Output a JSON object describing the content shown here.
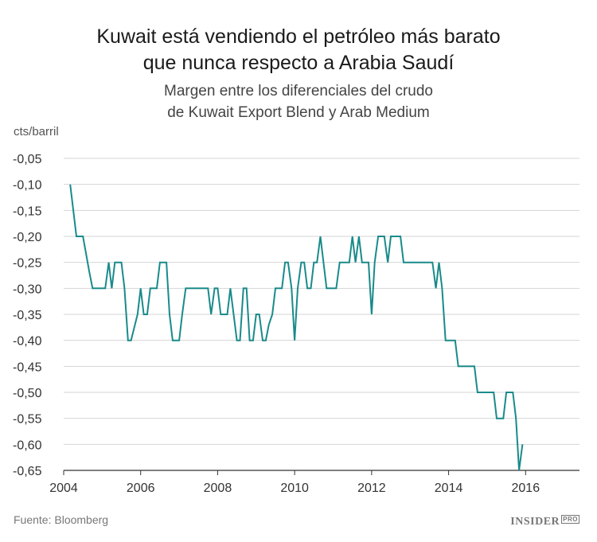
{
  "chart_data": {
    "type": "line",
    "title_lines": [
      "Kuwait está vendiendo el petróleo más barato",
      "que nunca respecto a Arabia Saudí"
    ],
    "subtitle_lines": [
      "Margen entre los diferenciales del crudo",
      "de Kuwait Export Blend y Arab Medium"
    ],
    "ylabel": "cts/barril",
    "xlim": [
      2004,
      2017.4
    ],
    "ylim": [
      -0.65,
      -0.05
    ],
    "y_ticks": [
      -0.05,
      -0.1,
      -0.15,
      -0.2,
      -0.25,
      -0.3,
      -0.35,
      -0.4,
      -0.45,
      -0.5,
      -0.55,
      -0.6,
      -0.65
    ],
    "y_tick_labels": [
      "-0,05",
      "-0,10",
      "-0,15",
      "-0,20",
      "-0,25",
      "-0,30",
      "-0,35",
      "-0,40",
      "-0,45",
      "-0,50",
      "-0,55",
      "-0,60",
      "-0,65"
    ],
    "x_ticks": [
      2004,
      2006,
      2008,
      2010,
      2012,
      2014,
      2016
    ],
    "x_tick_labels": [
      "2004",
      "2006",
      "2008",
      "2010",
      "2012",
      "2014",
      "2016"
    ],
    "line_color": "#1a8a8a",
    "series": [
      {
        "name": "Margen",
        "points": [
          [
            2004.17,
            -0.1
          ],
          [
            2004.33,
            -0.2
          ],
          [
            2004.5,
            -0.2
          ],
          [
            2004.67,
            -0.27
          ],
          [
            2004.75,
            -0.3
          ],
          [
            2005.0,
            -0.3
          ],
          [
            2005.08,
            -0.3
          ],
          [
            2005.17,
            -0.25
          ],
          [
            2005.25,
            -0.3
          ],
          [
            2005.33,
            -0.25
          ],
          [
            2005.5,
            -0.25
          ],
          [
            2005.58,
            -0.3
          ],
          [
            2005.67,
            -0.4
          ],
          [
            2005.75,
            -0.4
          ],
          [
            2005.92,
            -0.35
          ],
          [
            2006.0,
            -0.3
          ],
          [
            2006.08,
            -0.35
          ],
          [
            2006.17,
            -0.35
          ],
          [
            2006.25,
            -0.3
          ],
          [
            2006.42,
            -0.3
          ],
          [
            2006.5,
            -0.25
          ],
          [
            2006.67,
            -0.25
          ],
          [
            2006.75,
            -0.35
          ],
          [
            2006.83,
            -0.4
          ],
          [
            2007.0,
            -0.4
          ],
          [
            2007.08,
            -0.35
          ],
          [
            2007.17,
            -0.3
          ],
          [
            2007.75,
            -0.3
          ],
          [
            2007.83,
            -0.35
          ],
          [
            2007.92,
            -0.3
          ],
          [
            2008.0,
            -0.3
          ],
          [
            2008.08,
            -0.35
          ],
          [
            2008.25,
            -0.35
          ],
          [
            2008.33,
            -0.3
          ],
          [
            2008.5,
            -0.4
          ],
          [
            2008.58,
            -0.4
          ],
          [
            2008.67,
            -0.3
          ],
          [
            2008.75,
            -0.3
          ],
          [
            2008.83,
            -0.4
          ],
          [
            2008.92,
            -0.4
          ],
          [
            2009.0,
            -0.35
          ],
          [
            2009.08,
            -0.35
          ],
          [
            2009.17,
            -0.4
          ],
          [
            2009.25,
            -0.4
          ],
          [
            2009.33,
            -0.37
          ],
          [
            2009.42,
            -0.35
          ],
          [
            2009.5,
            -0.3
          ],
          [
            2009.67,
            -0.3
          ],
          [
            2009.75,
            -0.25
          ],
          [
            2009.83,
            -0.25
          ],
          [
            2009.92,
            -0.3
          ],
          [
            2010.0,
            -0.4
          ],
          [
            2010.08,
            -0.3
          ],
          [
            2010.17,
            -0.25
          ],
          [
            2010.25,
            -0.25
          ],
          [
            2010.33,
            -0.3
          ],
          [
            2010.42,
            -0.3
          ],
          [
            2010.5,
            -0.25
          ],
          [
            2010.58,
            -0.25
          ],
          [
            2010.67,
            -0.2
          ],
          [
            2010.75,
            -0.25
          ],
          [
            2010.83,
            -0.3
          ],
          [
            2011.08,
            -0.3
          ],
          [
            2011.17,
            -0.25
          ],
          [
            2011.42,
            -0.25
          ],
          [
            2011.5,
            -0.2
          ],
          [
            2011.58,
            -0.25
          ],
          [
            2011.67,
            -0.2
          ],
          [
            2011.75,
            -0.25
          ],
          [
            2011.92,
            -0.25
          ],
          [
            2012.0,
            -0.35
          ],
          [
            2012.08,
            -0.25
          ],
          [
            2012.17,
            -0.2
          ],
          [
            2012.33,
            -0.2
          ],
          [
            2012.42,
            -0.25
          ],
          [
            2012.5,
            -0.2
          ],
          [
            2012.75,
            -0.2
          ],
          [
            2012.83,
            -0.25
          ],
          [
            2013.5,
            -0.25
          ],
          [
            2013.58,
            -0.25
          ],
          [
            2013.67,
            -0.3
          ],
          [
            2013.75,
            -0.25
          ],
          [
            2013.83,
            -0.3
          ],
          [
            2013.92,
            -0.4
          ],
          [
            2014.17,
            -0.4
          ],
          [
            2014.25,
            -0.45
          ],
          [
            2014.67,
            -0.45
          ],
          [
            2014.75,
            -0.5
          ],
          [
            2015.17,
            -0.5
          ],
          [
            2015.25,
            -0.55
          ],
          [
            2015.42,
            -0.55
          ],
          [
            2015.5,
            -0.5
          ],
          [
            2015.67,
            -0.5
          ],
          [
            2015.75,
            -0.55
          ],
          [
            2015.83,
            -0.65
          ],
          [
            2015.92,
            -0.6
          ]
        ]
      }
    ]
  },
  "source": "Fuente: Bloomberg",
  "brand": {
    "name": "INSIDER",
    "tag": "PRO"
  }
}
